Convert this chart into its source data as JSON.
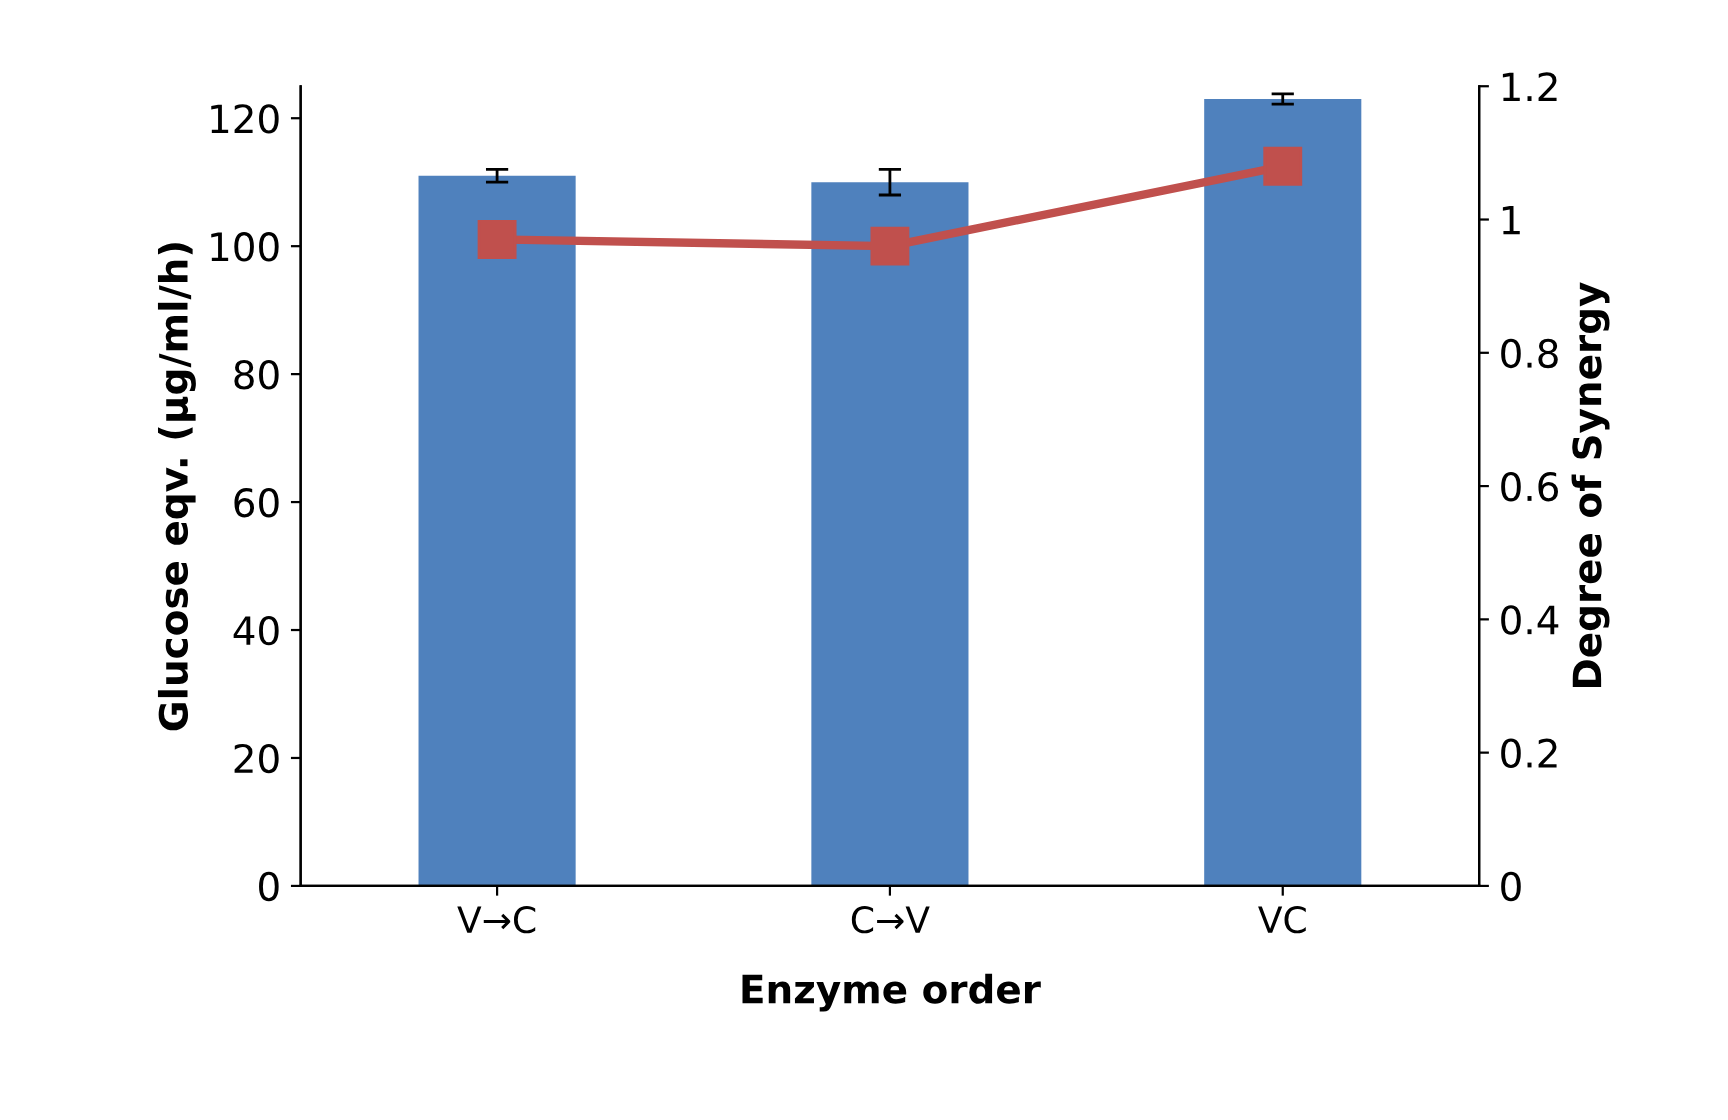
{
  "chart_data": {
    "type": "bar",
    "xlabel": "Enzyme order",
    "ylabel": "Glucose eqv. (µg/ml/h)",
    "y2label": "Degree of Synergy",
    "categories": [
      "V→C",
      "C→V",
      "VC"
    ],
    "series": [
      {
        "color": "#4f81bd",
        "values": [
          111,
          110,
          123
        ],
        "errors": [
          1,
          2,
          0.8
        ]
      },
      {
        "type": "line",
        "axis": "y2",
        "color": "#c0504d",
        "values": [
          0.97,
          0.96,
          1.08
        ],
        "marker": "square",
        "line_style": "solid"
      }
    ],
    "ylim": [
      0,
      125
    ],
    "yticks": [
      0,
      20,
      40,
      60,
      80,
      100,
      120
    ],
    "y2lim": [
      0,
      1.2
    ],
    "y2ticks": [
      0,
      0.2,
      0.4,
      0.6,
      0.8,
      1,
      1.2
    ],
    "grid": false
  }
}
